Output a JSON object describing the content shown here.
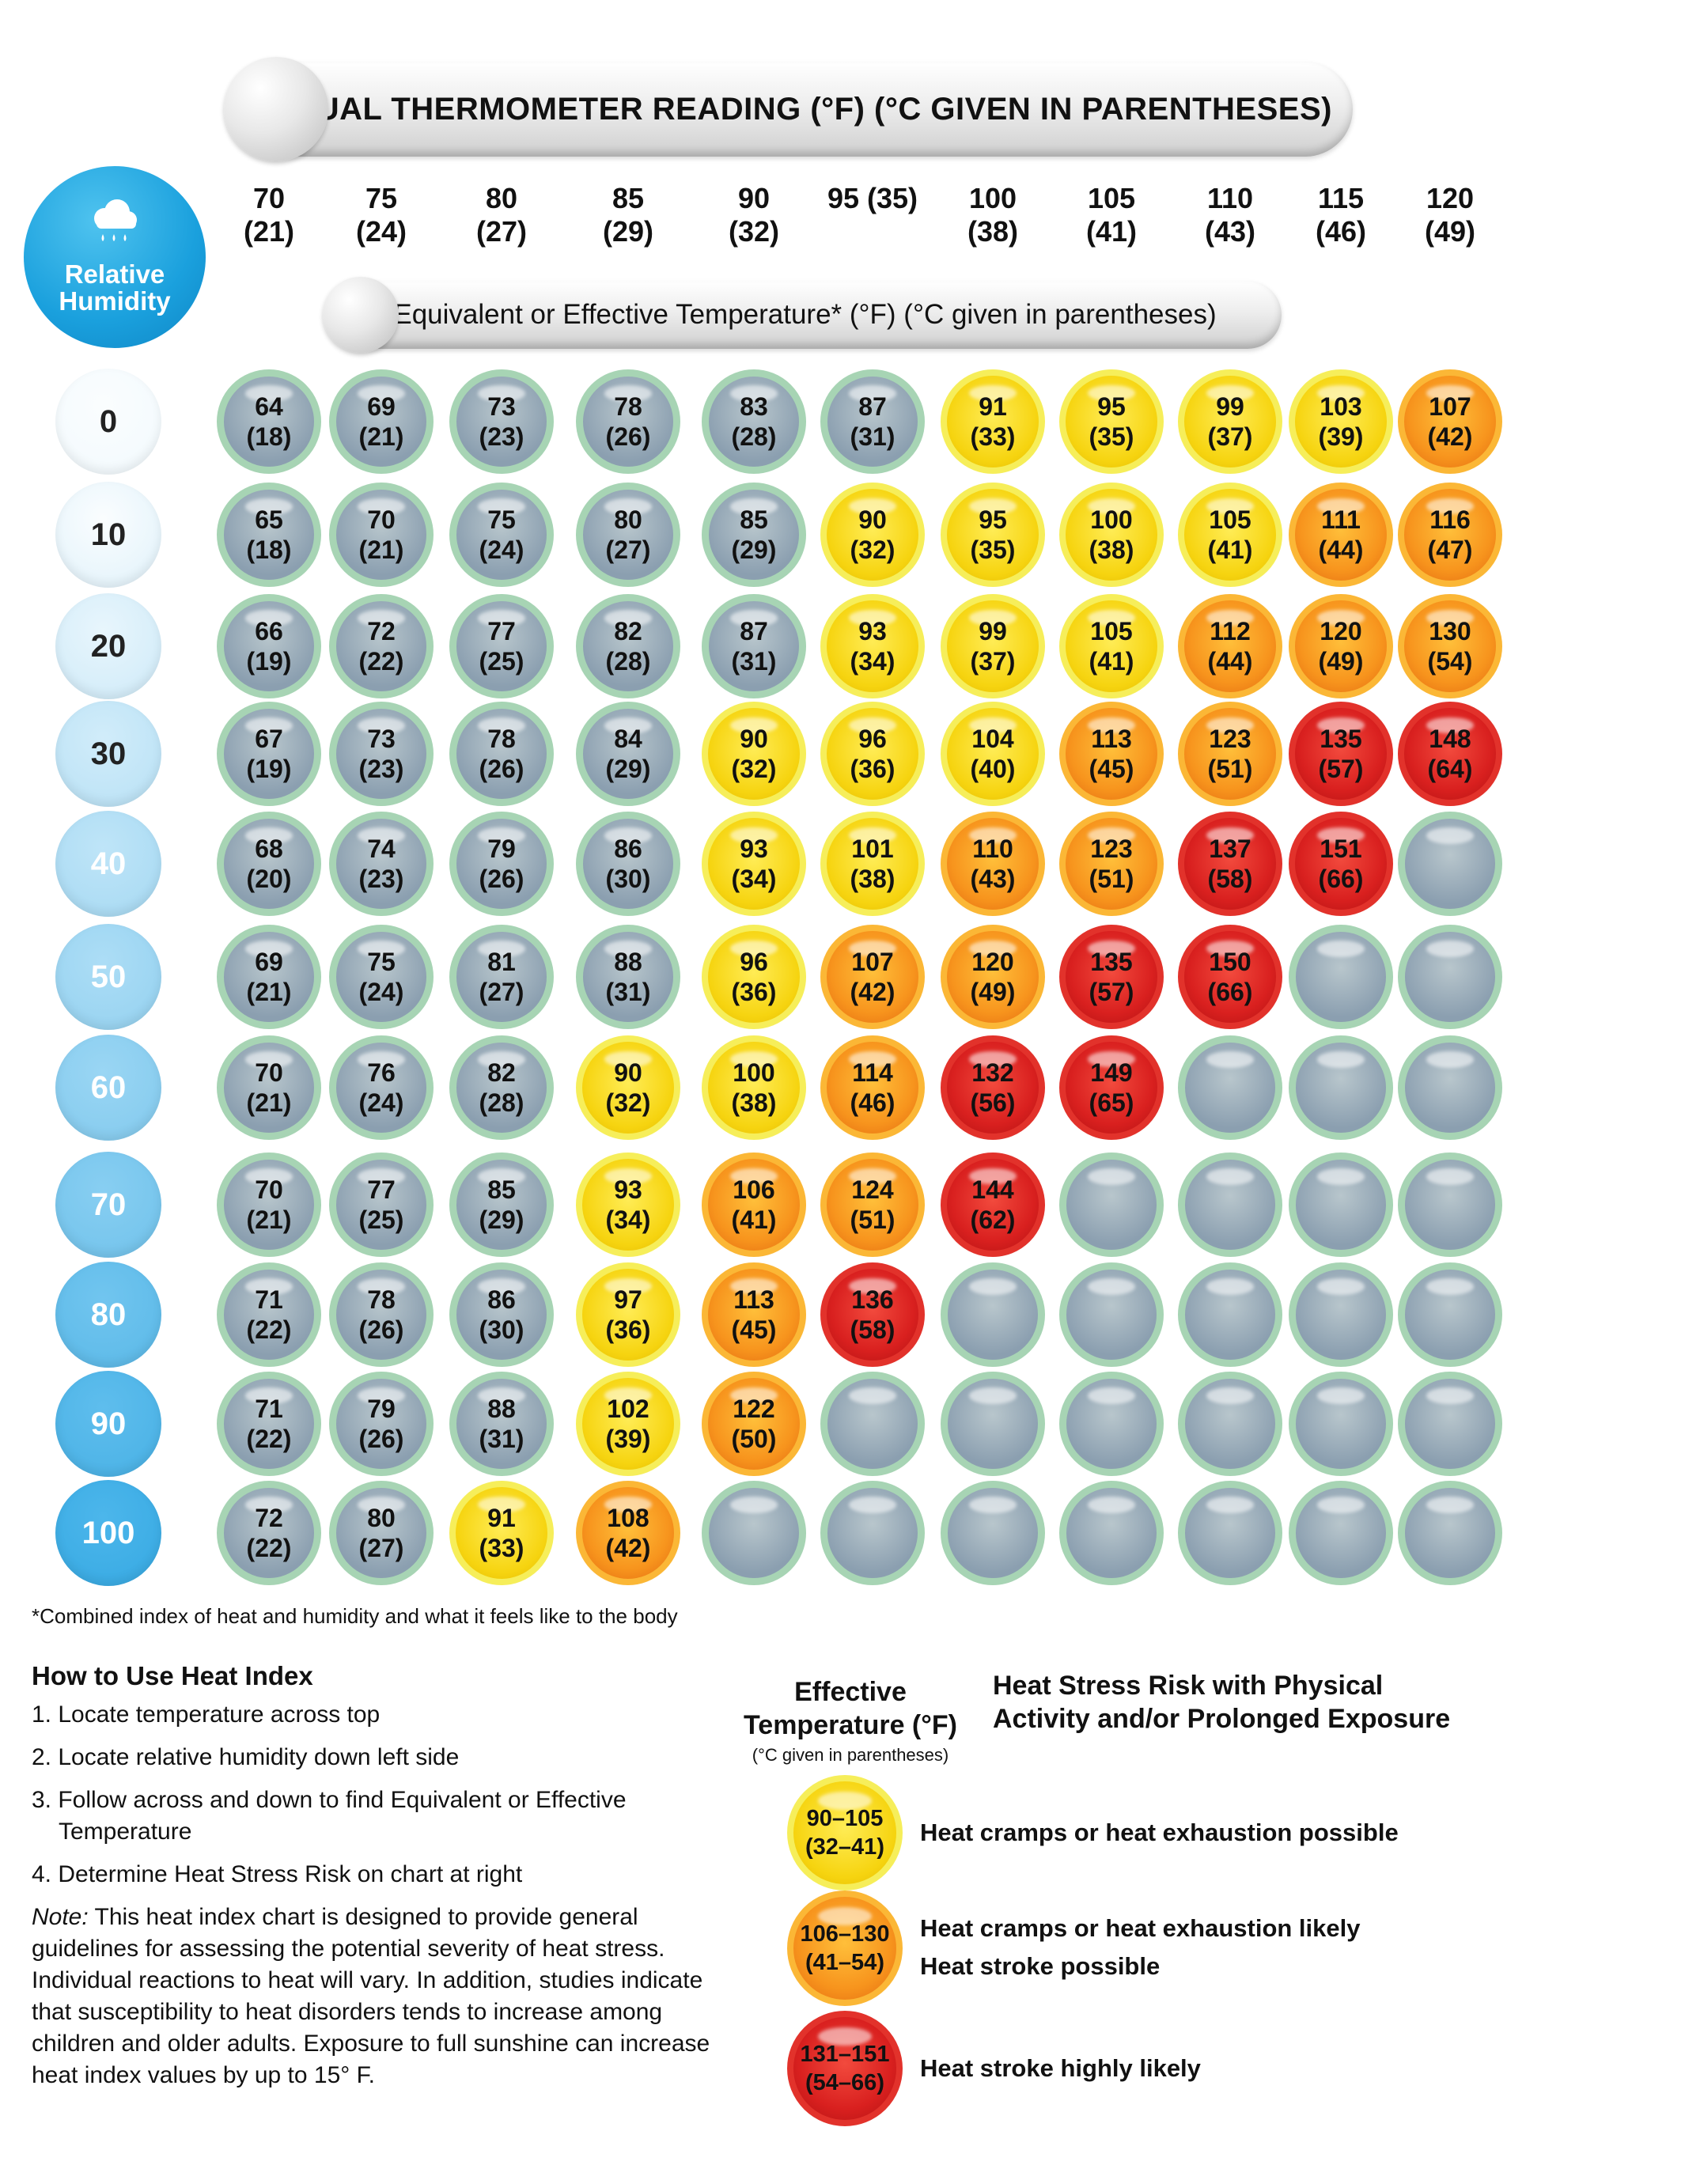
{
  "header": {
    "title": "ACTUAL THERMOMETER READING (°F) (°C GIVEN IN PARENTHESES)",
    "effective_title": "Equivalent or Effective Temperature* (°F) (°C given in parentheses)",
    "rh_label_1": "Relative",
    "rh_label_2": "Humidity"
  },
  "temps": [
    {
      "f": "70",
      "c": "(21)"
    },
    {
      "f": "75",
      "c": "(24)"
    },
    {
      "f": "80",
      "c": "(27)"
    },
    {
      "f": "85",
      "c": "(29)"
    },
    {
      "f": "90",
      "c": "(32)"
    },
    {
      "f": "95 (35)",
      "c": ""
    },
    {
      "f": "100",
      "c": "(38)"
    },
    {
      "f": "105",
      "c": "(41)"
    },
    {
      "f": "110",
      "c": "(43)"
    },
    {
      "f": "115",
      "c": "(46)"
    },
    {
      "f": "120",
      "c": "(49)"
    }
  ],
  "humidities": [
    "0",
    "10",
    "20",
    "30",
    "40",
    "50",
    "60",
    "70",
    "80",
    "90",
    "100"
  ],
  "colors": {
    "gray": "#8b9fb0",
    "yellow": "#f6d410",
    "orange": "#f7941d",
    "red": "#d9201f",
    "rh_badge": "#1aa0dd"
  },
  "chart_data": {
    "type": "table",
    "title": "ACTUAL THERMOMETER READING (°F) (°C GIVEN IN PARENTHESES)",
    "subtitle": "Equivalent or Effective Temperature* (°F) (°C given in parentheses)",
    "xlabel": "ACTUAL THERMOMETER READING (°F)",
    "ylabel": "Relative Humidity",
    "columns": [
      "70",
      "75",
      "80",
      "85",
      "90",
      "95",
      "100",
      "105",
      "110",
      "115",
      "120"
    ],
    "rows": [
      "0",
      "10",
      "20",
      "30",
      "40",
      "50",
      "60",
      "70",
      "80",
      "90",
      "100"
    ],
    "cells": [
      [
        [
          "64",
          "(18)",
          "gray"
        ],
        [
          "69",
          "(21)",
          "gray"
        ],
        [
          "73",
          "(23)",
          "gray"
        ],
        [
          "78",
          "(26)",
          "gray"
        ],
        [
          "83",
          "(28)",
          "gray"
        ],
        [
          "87",
          "(31)",
          "gray"
        ],
        [
          "91",
          "(33)",
          "yellow"
        ],
        [
          "95",
          "(35)",
          "yellow"
        ],
        [
          "99",
          "(37)",
          "yellow"
        ],
        [
          "103",
          "(39)",
          "yellow"
        ],
        [
          "107",
          "(42)",
          "orange"
        ]
      ],
      [
        [
          "65",
          "(18)",
          "gray"
        ],
        [
          "70",
          "(21)",
          "gray"
        ],
        [
          "75",
          "(24)",
          "gray"
        ],
        [
          "80",
          "(27)",
          "gray"
        ],
        [
          "85",
          "(29)",
          "gray"
        ],
        [
          "90",
          "(32)",
          "yellow"
        ],
        [
          "95",
          "(35)",
          "yellow"
        ],
        [
          "100",
          "(38)",
          "yellow"
        ],
        [
          "105",
          "(41)",
          "yellow"
        ],
        [
          "111",
          "(44)",
          "orange"
        ],
        [
          "116",
          "(47)",
          "orange"
        ]
      ],
      [
        [
          "66",
          "(19)",
          "gray"
        ],
        [
          "72",
          "(22)",
          "gray"
        ],
        [
          "77",
          "(25)",
          "gray"
        ],
        [
          "82",
          "(28)",
          "gray"
        ],
        [
          "87",
          "(31)",
          "gray"
        ],
        [
          "93",
          "(34)",
          "yellow"
        ],
        [
          "99",
          "(37)",
          "yellow"
        ],
        [
          "105",
          "(41)",
          "yellow"
        ],
        [
          "112",
          "(44)",
          "orange"
        ],
        [
          "120",
          "(49)",
          "orange"
        ],
        [
          "130",
          "(54)",
          "orange"
        ]
      ],
      [
        [
          "67",
          "(19)",
          "gray"
        ],
        [
          "73",
          "(23)",
          "gray"
        ],
        [
          "78",
          "(26)",
          "gray"
        ],
        [
          "84",
          "(29)",
          "gray"
        ],
        [
          "90",
          "(32)",
          "yellow"
        ],
        [
          "96",
          "(36)",
          "yellow"
        ],
        [
          "104",
          "(40)",
          "yellow"
        ],
        [
          "113",
          "(45)",
          "orange"
        ],
        [
          "123",
          "(51)",
          "orange"
        ],
        [
          "135",
          "(57)",
          "red"
        ],
        [
          "148",
          "(64)",
          "red"
        ]
      ],
      [
        [
          "68",
          "(20)",
          "gray"
        ],
        [
          "74",
          "(23)",
          "gray"
        ],
        [
          "79",
          "(26)",
          "gray"
        ],
        [
          "86",
          "(30)",
          "gray"
        ],
        [
          "93",
          "(34)",
          "yellow"
        ],
        [
          "101",
          "(38)",
          "yellow"
        ],
        [
          "110",
          "(43)",
          "orange"
        ],
        [
          "123",
          "(51)",
          "orange"
        ],
        [
          "137",
          "(58)",
          "red"
        ],
        [
          "151",
          "(66)",
          "red"
        ],
        [
          "",
          "",
          "none"
        ]
      ],
      [
        [
          "69",
          "(21)",
          "gray"
        ],
        [
          "75",
          "(24)",
          "gray"
        ],
        [
          "81",
          "(27)",
          "gray"
        ],
        [
          "88",
          "(31)",
          "gray"
        ],
        [
          "96",
          "(36)",
          "yellow"
        ],
        [
          "107",
          "(42)",
          "orange"
        ],
        [
          "120",
          "(49)",
          "orange"
        ],
        [
          "135",
          "(57)",
          "red"
        ],
        [
          "150",
          "(66)",
          "red"
        ],
        [
          "",
          "",
          "none"
        ],
        [
          "",
          "",
          "none"
        ]
      ],
      [
        [
          "70",
          "(21)",
          "gray"
        ],
        [
          "76",
          "(24)",
          "gray"
        ],
        [
          "82",
          "(28)",
          "gray"
        ],
        [
          "90",
          "(32)",
          "yellow"
        ],
        [
          "100",
          "(38)",
          "yellow"
        ],
        [
          "114",
          "(46)",
          "orange"
        ],
        [
          "132",
          "(56)",
          "red"
        ],
        [
          "149",
          "(65)",
          "red"
        ],
        [
          "",
          "",
          "none"
        ],
        [
          "",
          "",
          "none"
        ],
        [
          "",
          "",
          "none"
        ]
      ],
      [
        [
          "70",
          "(21)",
          "gray"
        ],
        [
          "77",
          "(25)",
          "gray"
        ],
        [
          "85",
          "(29)",
          "gray"
        ],
        [
          "93",
          "(34)",
          "yellow"
        ],
        [
          "106",
          "(41)",
          "orange"
        ],
        [
          "124",
          "(51)",
          "orange"
        ],
        [
          "144",
          "(62)",
          "red"
        ],
        [
          "",
          "",
          "none"
        ],
        [
          "",
          "",
          "none"
        ],
        [
          "",
          "",
          "none"
        ],
        [
          "",
          "",
          "none"
        ]
      ],
      [
        [
          "71",
          "(22)",
          "gray"
        ],
        [
          "78",
          "(26)",
          "gray"
        ],
        [
          "86",
          "(30)",
          "gray"
        ],
        [
          "97",
          "(36)",
          "yellow"
        ],
        [
          "113",
          "(45)",
          "orange"
        ],
        [
          "136",
          "(58)",
          "red"
        ],
        [
          "",
          "",
          "none"
        ],
        [
          "",
          "",
          "none"
        ],
        [
          "",
          "",
          "none"
        ],
        [
          "",
          "",
          "none"
        ],
        [
          "",
          "",
          "none"
        ]
      ],
      [
        [
          "71",
          "(22)",
          "gray"
        ],
        [
          "79",
          "(26)",
          "gray"
        ],
        [
          "88",
          "(31)",
          "gray"
        ],
        [
          "102",
          "(39)",
          "yellow"
        ],
        [
          "122",
          "(50)",
          "orange"
        ],
        [
          "",
          "",
          "none"
        ],
        [
          "",
          "",
          "none"
        ],
        [
          "",
          "",
          "none"
        ],
        [
          "",
          "",
          "none"
        ],
        [
          "",
          "",
          "none"
        ],
        [
          "",
          "",
          "none"
        ]
      ],
      [
        [
          "72",
          "(22)",
          "gray"
        ],
        [
          "80",
          "(27)",
          "gray"
        ],
        [
          "91",
          "(33)",
          "yellow"
        ],
        [
          "108",
          "(42)",
          "orange"
        ],
        [
          "",
          "",
          "none"
        ],
        [
          "",
          "",
          "none"
        ],
        [
          "",
          "",
          "none"
        ],
        [
          "",
          "",
          "none"
        ],
        [
          "",
          "",
          "none"
        ],
        [
          "",
          "",
          "none"
        ],
        [
          "",
          "",
          "none"
        ]
      ]
    ]
  },
  "footnote": "*Combined index of heat and humidity and what it feels like to the body",
  "howto": {
    "title": "How to Use Heat Index",
    "steps": [
      "1. Locate temperature across top",
      "2. Locate relative humidity down left side",
      "3. Follow across and down to find Equivalent or Effective Temperature",
      "4. Determine Heat Stress Risk on chart at right"
    ],
    "note_label": "Note:",
    "note_text": " This heat index chart is designed to provide general guidelines for assessing the potential severity of heat stress. Individual reactions to heat will vary. In addition, studies indicate that susceptibility to heat disorders tends to increase among children and older adults. Exposure to full sunshine can increase heat index values by up to 15° F."
  },
  "legend": {
    "head_left_1": "Effective",
    "head_left_2": "Temperature (°F)",
    "head_left_sub": "(°C given in parentheses)",
    "head_right_1": "Heat Stress Risk with Physical",
    "head_right_2": "Activity and/or Prolonged Exposure",
    "items": [
      {
        "range_f": "90–105",
        "range_c": "(32–41)",
        "color": "yellow",
        "text1": "Heat cramps or heat exhaustion possible",
        "text2": ""
      },
      {
        "range_f": "106–130",
        "range_c": "(41–54)",
        "color": "orange",
        "text1": "Heat cramps or heat exhaustion likely",
        "text2": "Heat stroke possible"
      },
      {
        "range_f": "131–151",
        "range_c": "(54–66)",
        "color": "red",
        "text1": "Heat stroke highly likely",
        "text2": ""
      }
    ]
  }
}
